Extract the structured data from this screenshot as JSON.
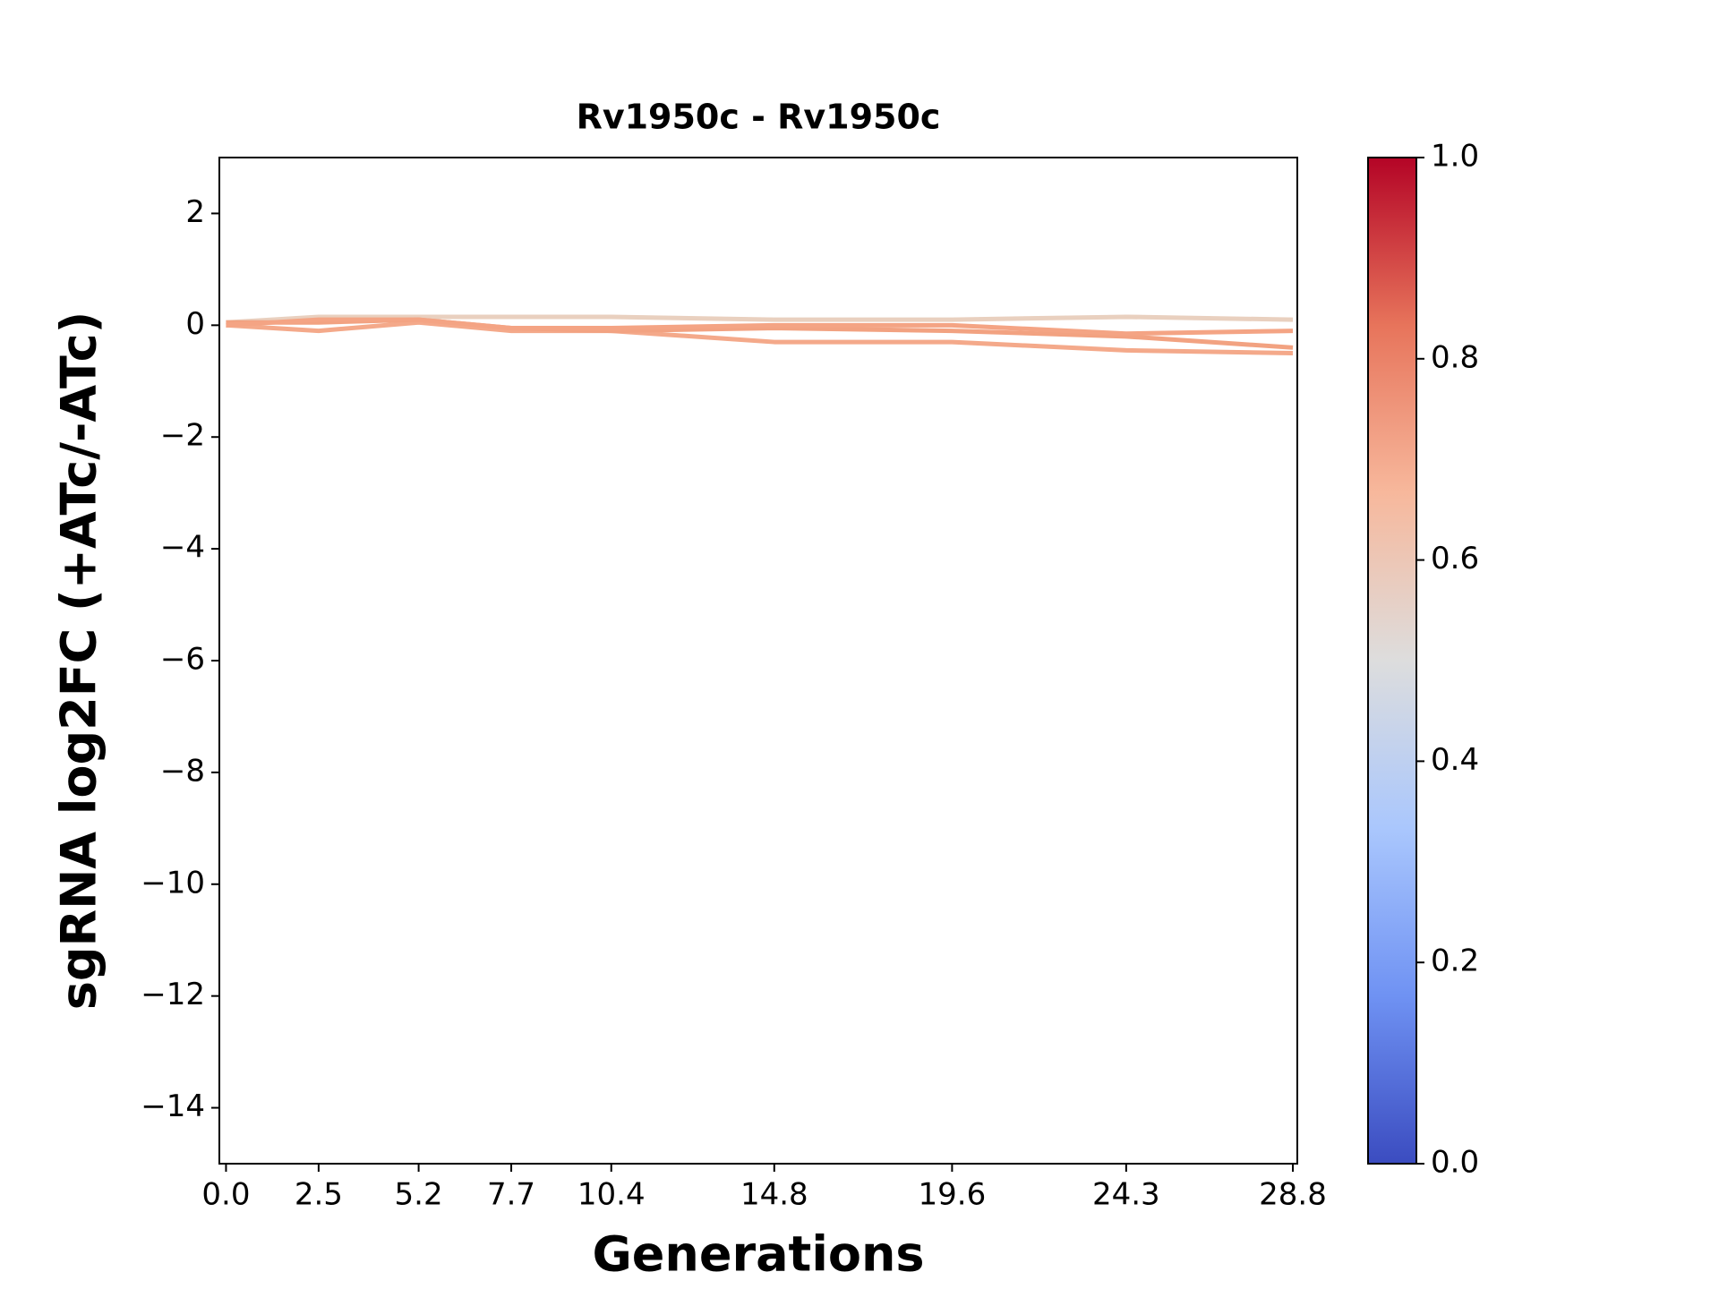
{
  "chart_data": {
    "type": "line",
    "title": "Rv1950c - Rv1950c",
    "x_label": "Generations",
    "y_label": "sgRNA log2FC (+ATc/-ATc)",
    "x": [
      0.0,
      2.5,
      5.2,
      7.7,
      10.4,
      14.8,
      19.6,
      24.3,
      28.8
    ],
    "series": [
      {
        "color": "#e9d0bf",
        "values": [
          0.05,
          0.15,
          0.15,
          0.15,
          0.15,
          0.1,
          0.1,
          0.15,
          0.1
        ]
      },
      {
        "color": "#f4a98a",
        "values": [
          0.0,
          -0.1,
          0.05,
          -0.1,
          -0.1,
          -0.3,
          -0.3,
          -0.45,
          -0.5
        ]
      },
      {
        "color": "#f2a281",
        "values": [
          0.05,
          0.05,
          0.1,
          -0.05,
          -0.1,
          -0.05,
          -0.1,
          -0.2,
          -0.4
        ]
      },
      {
        "color": "#f4a484",
        "values": [
          0.0,
          0.1,
          0.1,
          -0.05,
          -0.05,
          0.0,
          0.0,
          -0.15,
          -0.1
        ]
      }
    ],
    "xlim": [
      -0.18,
      28.92
    ],
    "xticks": [
      {
        "value": 0,
        "label": "0.0"
      },
      2.5,
      5.2,
      7.7,
      10.4,
      14.8,
      19.6,
      24.3,
      28.8
    ],
    "ylim": [
      -15,
      3
    ],
    "yticks": [
      {
        "value": -14,
        "label": "−14"
      },
      {
        "value": -12,
        "label": "−12"
      },
      {
        "value": -10,
        "label": "−10"
      },
      {
        "value": -8,
        "label": "−8"
      },
      {
        "value": -6,
        "label": "−6"
      },
      {
        "value": -4,
        "label": "−4"
      },
      {
        "value": -2,
        "label": "−2"
      },
      0,
      2
    ],
    "colorbar": {
      "lim": [
        0,
        1
      ],
      "colormap": [
        "#3b4cc0",
        "#6f92f3",
        "#aac7fd",
        "#dddddd",
        "#f7b89c",
        "#e7745b",
        "#b40426"
      ],
      "ticks": [
        {
          "value": 0,
          "label": "0.0"
        },
        0.2,
        0.4,
        0.6,
        0.8,
        {
          "value": 1,
          "label": "1.0"
        }
      ]
    }
  }
}
